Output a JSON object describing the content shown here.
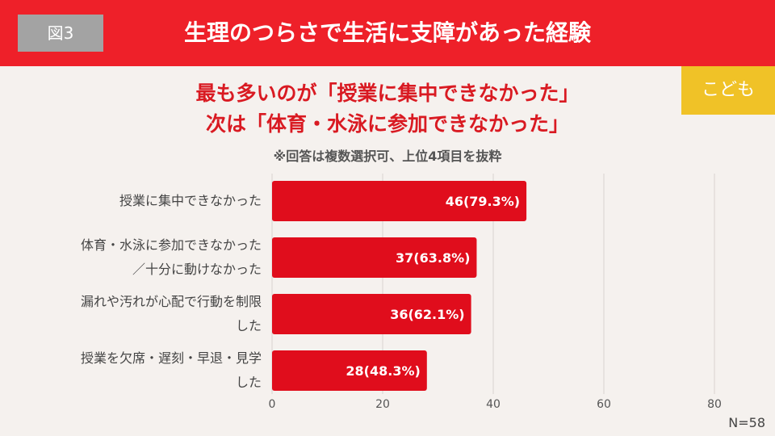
{
  "header": {
    "figure_label": "図3",
    "title": "生理のつらさで生活に支障があった経験"
  },
  "badge": "こども",
  "headline": {
    "line1": "最も多いのが「授業に集中できなかった」",
    "line2": "次は「体育・水泳に参加できなかった」"
  },
  "note": "※回答は複数選択可、上位4項目を抜粋",
  "sample_size": "N=58",
  "colors": {
    "header": "#ee2029",
    "bar": "#e00d1c",
    "badge": "#f0c227"
  },
  "chart_data": {
    "type": "bar",
    "orientation": "horizontal",
    "categories": [
      [
        "授業に集中できなかった"
      ],
      [
        "体育・水泳に参加できなかった",
        "／十分に動けなかった"
      ],
      [
        "漏れや汚れが心配で行動を制限",
        "した"
      ],
      [
        "授業を欠席・遅刻・早退・見学",
        "した"
      ]
    ],
    "values": [
      46,
      37,
      36,
      28
    ],
    "data_labels": [
      "46(79.3%)",
      "37(63.8%)",
      "36(62.1%)",
      "28(48.3%)"
    ],
    "xlim": [
      0,
      80
    ],
    "xticks": [
      0,
      20,
      40,
      60,
      80
    ],
    "grid": true
  }
}
